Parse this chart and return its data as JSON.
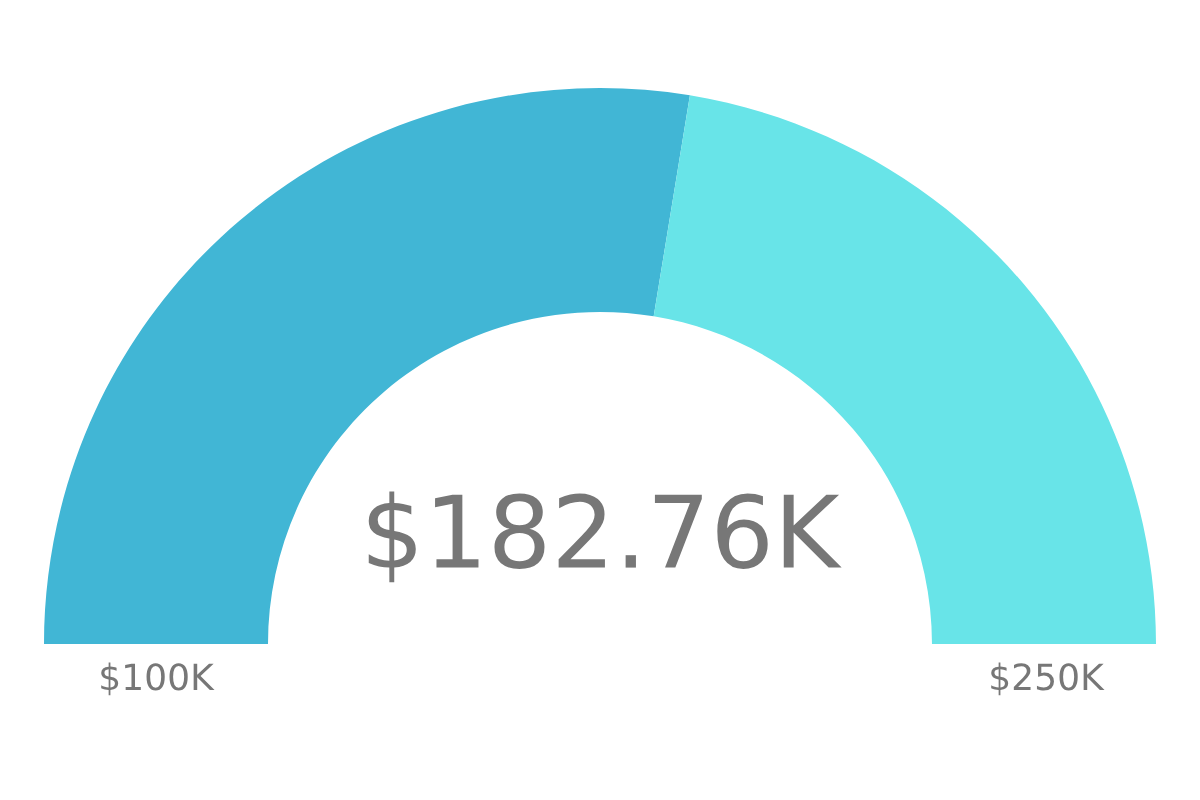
{
  "chart_data": {
    "type": "donut",
    "categories": [
      null,
      null
    ],
    "values": [
      55.17,
      44.83
    ],
    "colors": [
      "#41b6d5",
      "#68e4e8"
    ],
    "annotations": [
      "$182.76K",
      "$100K",
      "$250K"
    ]
  }
}
